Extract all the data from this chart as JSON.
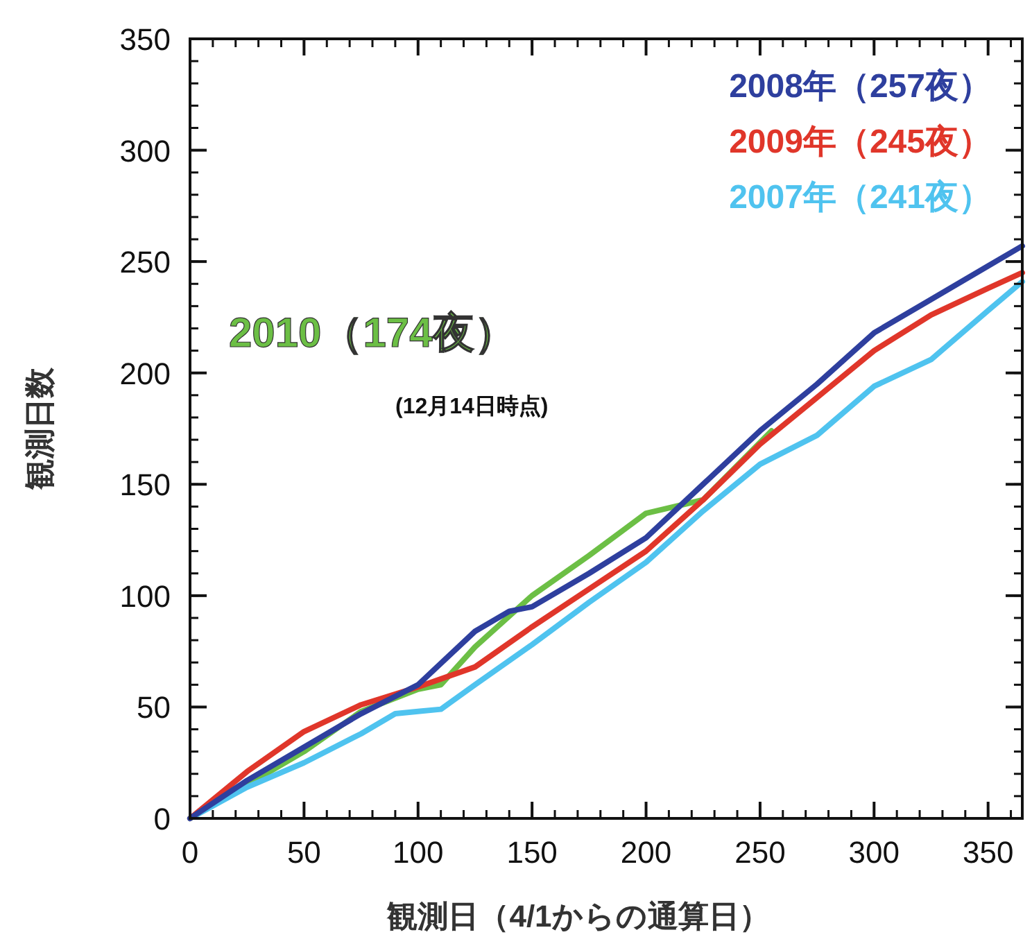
{
  "chart_data": {
    "type": "line",
    "xlabel": "観測日（4/1からの通算日）",
    "ylabel": "観測日数",
    "xlim": [
      0,
      365
    ],
    "ylim": [
      0,
      350
    ],
    "xticks": [
      0,
      50,
      100,
      150,
      200,
      250,
      300,
      350
    ],
    "yticks": [
      0,
      50,
      100,
      150,
      200,
      250,
      300,
      350
    ],
    "grid": false,
    "legend": "top right",
    "marker": "none",
    "line_style": "solid",
    "annotations": [
      "(12月14日時点)"
    ],
    "series": [
      {
        "name": "2008年（257夜）",
        "color": "#2e3f9e",
        "x": [
          0,
          25,
          50,
          75,
          100,
          125,
          140,
          150,
          175,
          200,
          225,
          250,
          275,
          300,
          325,
          350,
          365
        ],
        "values": [
          0,
          17,
          32,
          47,
          60,
          84,
          93,
          95,
          110,
          126,
          150,
          174,
          195,
          218,
          233,
          248,
          257
        ]
      },
      {
        "name": "2009年（245夜）",
        "color": "#e0362a",
        "x": [
          0,
          25,
          50,
          75,
          100,
          125,
          150,
          175,
          200,
          225,
          250,
          275,
          300,
          325,
          350,
          365
        ],
        "values": [
          0,
          21,
          39,
          51,
          59,
          68,
          86,
          103,
          120,
          143,
          168,
          189,
          210,
          226,
          238,
          245
        ]
      },
      {
        "name": "2007年（241夜）",
        "color": "#4fc3ef",
        "x": [
          0,
          25,
          50,
          75,
          90,
          100,
          110,
          125,
          150,
          175,
          200,
          225,
          250,
          275,
          300,
          325,
          350,
          365
        ],
        "values": [
          0,
          14,
          25,
          38,
          47,
          48,
          49,
          60,
          78,
          97,
          115,
          138,
          159,
          172,
          194,
          206,
          228,
          241
        ]
      },
      {
        "name": "2010（174夜）",
        "color": "#6cbf45",
        "x": [
          0,
          25,
          50,
          75,
          100,
          110,
          125,
          150,
          175,
          200,
          225,
          255
        ],
        "values": [
          0,
          15,
          30,
          48,
          58,
          60,
          77,
          100,
          118,
          137,
          143,
          174
        ]
      }
    ]
  }
}
